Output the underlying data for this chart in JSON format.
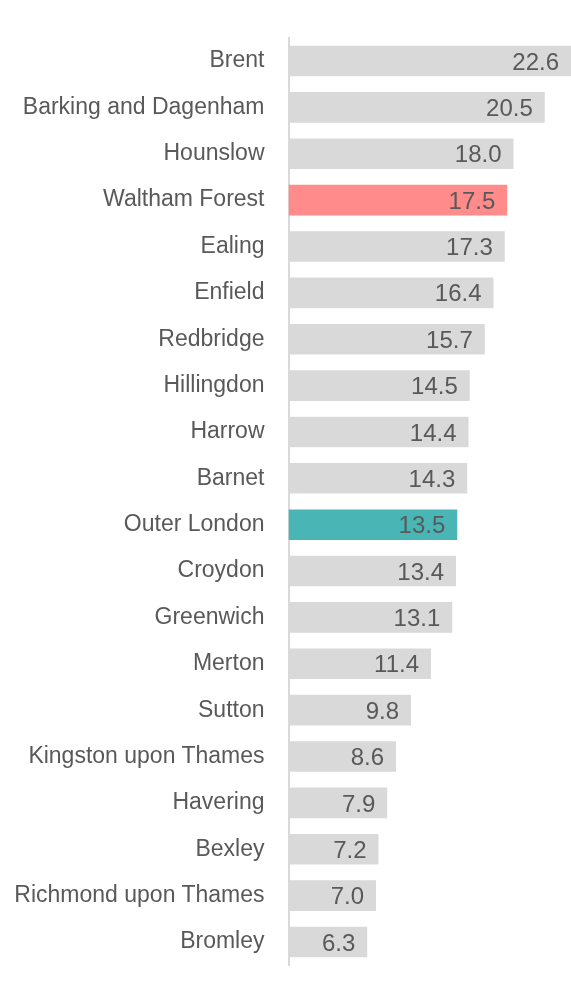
{
  "chart_data": {
    "type": "bar",
    "orientation": "horizontal",
    "value_labels": [
      "22.6",
      "20.5",
      "18.0",
      "17.5",
      "17.3",
      "16.4",
      "15.7",
      "14.5",
      "14.4",
      "14.3",
      "13.5",
      "13.4",
      "13.1",
      "11.4",
      "9.8",
      "8.6",
      "7.9",
      "7.2",
      "7.0",
      "6.3"
    ],
    "categories": [
      "Brent",
      "Barking and Dagenham",
      "Hounslow",
      "Waltham Forest",
      "Ealing",
      "Enfield",
      "Redbridge",
      "Hillingdon",
      "Harrow",
      "Barnet",
      "Outer London",
      "Croydon",
      "Greenwich",
      "Merton",
      "Sutton",
      "Kingston upon Thames",
      "Havering",
      "Bexley",
      "Richmond upon Thames",
      "Bromley"
    ],
    "values": [
      22.6,
      20.5,
      18.0,
      17.5,
      17.3,
      16.4,
      15.7,
      14.5,
      14.4,
      14.3,
      13.5,
      13.4,
      13.1,
      11.4,
      9.8,
      8.6,
      7.9,
      7.2,
      7.0,
      6.3
    ],
    "colors": [
      "#d9d9d9",
      "#d9d9d9",
      "#d9d9d9",
      "#ff8b8b",
      "#d9d9d9",
      "#d9d9d9",
      "#d9d9d9",
      "#d9d9d9",
      "#d9d9d9",
      "#d9d9d9",
      "#4ab5b5",
      "#d9d9d9",
      "#d9d9d9",
      "#d9d9d9",
      "#d9d9d9",
      "#d9d9d9",
      "#d9d9d9",
      "#d9d9d9",
      "#d9d9d9",
      "#d9d9d9"
    ]
  }
}
